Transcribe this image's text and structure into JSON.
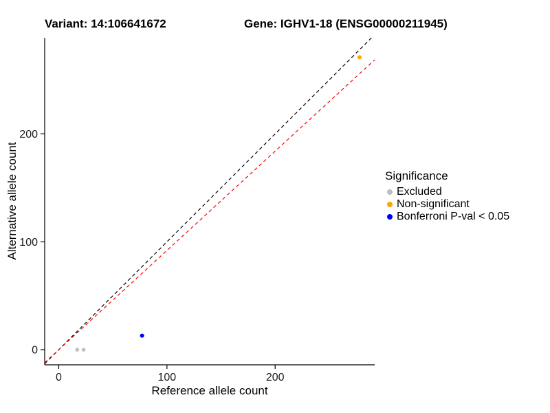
{
  "titles": {
    "left": "Variant: 14:106641672",
    "right": "Gene: IGHV1-18 (ENSG00000211945)"
  },
  "chart_data": {
    "type": "scatter",
    "xlabel": "Reference allele count",
    "ylabel": "Alternative allele count",
    "xlim": [
      -13,
      292
    ],
    "ylim": [
      -14,
      289
    ],
    "xticks": [
      0,
      100,
      200
    ],
    "yticks": [
      0,
      100,
      200
    ],
    "grid": false,
    "series": [
      {
        "key": "excluded",
        "name": "Excluded",
        "color": "#BEBEBE",
        "r": 2.8,
        "points": [
          [
            17,
            0
          ],
          [
            23,
            0
          ]
        ]
      },
      {
        "key": "non-significant",
        "name": "Non-significant",
        "color": "#FFA500",
        "r": 3,
        "points": [
          [
            278,
            271
          ]
        ]
      },
      {
        "key": "bonferroni",
        "name": "Bonferroni P-val < 0.05",
        "color": "#0000FF",
        "r": 3,
        "points": [
          [
            77,
            13
          ]
        ]
      }
    ],
    "lines": [
      {
        "key": "identity",
        "color": "#000000",
        "slope": 1.0,
        "intercept": 0,
        "dash": "5 4"
      },
      {
        "key": "expected",
        "color": "#FF0000",
        "slope": 0.92,
        "intercept": 0,
        "dash": "5 4"
      }
    ],
    "legend": {
      "title": "Significance",
      "position": "right",
      "entries": [
        {
          "label": "Excluded",
          "color": "#BEBEBE"
        },
        {
          "label": "Non-significant",
          "color": "#FFA500"
        },
        {
          "label": "Bonferroni P-val < 0.05",
          "color": "#0000FF"
        }
      ]
    }
  }
}
